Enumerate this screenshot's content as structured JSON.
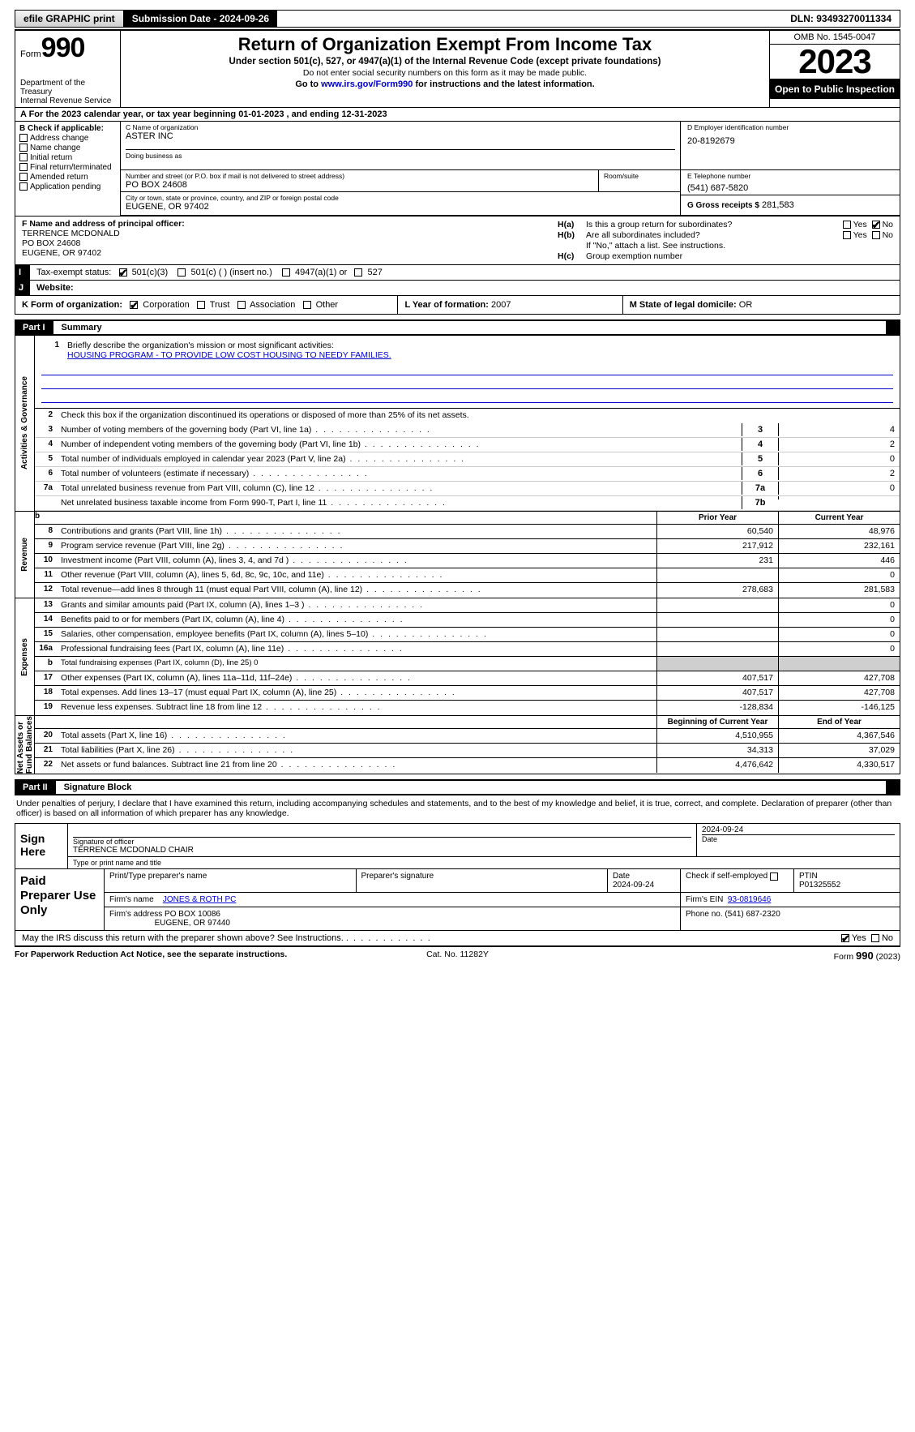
{
  "topbar": {
    "efile": "efile GRAPHIC print",
    "submission": "Submission Date - 2024-09-26",
    "dln": "DLN: 93493270011334"
  },
  "header": {
    "form_word": "Form",
    "form_num": "990",
    "dept": "Department of the Treasury\nInternal Revenue Service",
    "title": "Return of Organization Exempt From Income Tax",
    "sub1": "Under section 501(c), 527, or 4947(a)(1) of the Internal Revenue Code (except private foundations)",
    "sub2": "Do not enter social security numbers on this form as it may be made public.",
    "sub3_pre": "Go to ",
    "sub3_link": "www.irs.gov/Form990",
    "sub3_post": " for instructions and the latest information.",
    "omb": "OMB No. 1545-0047",
    "year": "2023",
    "open": "Open to Public Inspection"
  },
  "a_line": "A For the 2023 calendar year, or tax year beginning 01-01-2023    , and ending 12-31-2023",
  "b": {
    "hd": "B Check if applicable:",
    "items": [
      "Address change",
      "Name change",
      "Initial return",
      "Final return/terminated",
      "Amended return",
      "Application pending"
    ]
  },
  "c": {
    "name_lbl": "C Name of organization",
    "name": "ASTER INC",
    "dba_lbl": "Doing business as",
    "addr_lbl": "Number and street (or P.O. box if mail is not delivered to street address)",
    "room_lbl": "Room/suite",
    "addr": "PO BOX 24608",
    "city_lbl": "City or town, state or province, country, and ZIP or foreign postal code",
    "city": "EUGENE, OR  97402"
  },
  "d": {
    "lbl": "D Employer identification number",
    "val": "20-8192679"
  },
  "e": {
    "lbl": "E Telephone number",
    "val": "(541) 687-5820"
  },
  "g": {
    "lbl": "G Gross receipts $",
    "val": "281,583"
  },
  "f": {
    "lbl": "F  Name and address of principal officer:",
    "name": "TERRENCE MCDONALD",
    "addr1": "PO BOX 24608",
    "addr2": "EUGENE, OR  97402"
  },
  "h": {
    "a_q": "Is this a group return for subordinates?",
    "b_q": "Are all subordinates included?",
    "no_note": "If \"No,\" attach a list. See instructions.",
    "c_q": "Group exemption number",
    "yes": "Yes",
    "no": "No"
  },
  "i": {
    "lbl": "Tax-exempt status:",
    "opts": [
      "501(c)(3)",
      "501(c) (  ) (insert no.)",
      "4947(a)(1) or",
      "527"
    ]
  },
  "j": {
    "lbl": "Website: "
  },
  "k": {
    "lbl": "K Form of organization:",
    "opts": [
      "Corporation",
      "Trust",
      "Association",
      "Other"
    ]
  },
  "l": {
    "lbl": "L Year of formation:",
    "val": "2007"
  },
  "m": {
    "lbl": "M State of legal domicile:",
    "val": "OR"
  },
  "parts": {
    "p1": "Part I",
    "p1t": "Summary",
    "p2": "Part II",
    "p2t": "Signature Block"
  },
  "vtabs": {
    "ag": "Activities & Governance",
    "rev": "Revenue",
    "exp": "Expenses",
    "net": "Net Assets or\nFund Balances"
  },
  "brief_lbl": "Briefly describe the organization's mission or most significant activities:",
  "brief_val": "HOUSING PROGRAM - TO PROVIDE LOW COST HOUSING TO NEEDY FAMILIES.",
  "line2": "Check this box      if the organization discontinued its operations or disposed of more than 25% of its net assets.",
  "gov_rows": [
    {
      "n": "3",
      "t": "Number of voting members of the governing body (Part VI, line 1a)",
      "rn": "3",
      "v": "4"
    },
    {
      "n": "4",
      "t": "Number of independent voting members of the governing body (Part VI, line 1b)",
      "rn": "4",
      "v": "2"
    },
    {
      "n": "5",
      "t": "Total number of individuals employed in calendar year 2023 (Part V, line 2a)",
      "rn": "5",
      "v": "0"
    },
    {
      "n": "6",
      "t": "Total number of volunteers (estimate if necessary)",
      "rn": "6",
      "v": "2"
    },
    {
      "n": "7a",
      "t": "Total unrelated business revenue from Part VIII, column (C), line 12",
      "rn": "7a",
      "v": "0"
    },
    {
      "n": "",
      "t": "Net unrelated business taxable income from Form 990-T, Part I, line 11",
      "rn": "7b",
      "v": ""
    }
  ],
  "col_hdrs": {
    "prior": "Prior Year",
    "current": "Current Year",
    "beg": "Beginning of Current Year",
    "end": "End of Year"
  },
  "rev_rows": [
    {
      "n": "8",
      "t": "Contributions and grants (Part VIII, line 1h)",
      "p": "60,540",
      "c": "48,976"
    },
    {
      "n": "9",
      "t": "Program service revenue (Part VIII, line 2g)",
      "p": "217,912",
      "c": "232,161"
    },
    {
      "n": "10",
      "t": "Investment income (Part VIII, column (A), lines 3, 4, and 7d )",
      "p": "231",
      "c": "446"
    },
    {
      "n": "11",
      "t": "Other revenue (Part VIII, column (A), lines 5, 6d, 8c, 9c, 10c, and 11e)",
      "p": "",
      "c": "0"
    },
    {
      "n": "12",
      "t": "Total revenue—add lines 8 through 11 (must equal Part VIII, column (A), line 12)",
      "p": "278,683",
      "c": "281,583"
    }
  ],
  "exp_rows": [
    {
      "n": "13",
      "t": "Grants and similar amounts paid (Part IX, column (A), lines 1–3 )",
      "p": "",
      "c": "0"
    },
    {
      "n": "14",
      "t": "Benefits paid to or for members (Part IX, column (A), line 4)",
      "p": "",
      "c": "0"
    },
    {
      "n": "15",
      "t": "Salaries, other compensation, employee benefits (Part IX, column (A), lines 5–10)",
      "p": "",
      "c": "0"
    },
    {
      "n": "16a",
      "t": "Professional fundraising fees (Part IX, column (A), line 11e)",
      "p": "",
      "c": "0"
    },
    {
      "n": "b",
      "t": "Total fundraising expenses (Part IX, column (D), line 25) 0",
      "shade": true
    },
    {
      "n": "17",
      "t": "Other expenses (Part IX, column (A), lines 11a–11d, 11f–24e)",
      "p": "407,517",
      "c": "427,708"
    },
    {
      "n": "18",
      "t": "Total expenses. Add lines 13–17 (must equal Part IX, column (A), line 25)",
      "p": "407,517",
      "c": "427,708"
    },
    {
      "n": "19",
      "t": "Revenue less expenses. Subtract line 18 from line 12",
      "p": "-128,834",
      "c": "-146,125"
    }
  ],
  "net_rows": [
    {
      "n": "20",
      "t": "Total assets (Part X, line 16)",
      "p": "4,510,955",
      "c": "4,367,546"
    },
    {
      "n": "21",
      "t": "Total liabilities (Part X, line 26)",
      "p": "34,313",
      "c": "37,029"
    },
    {
      "n": "22",
      "t": "Net assets or fund balances. Subtract line 21 from line 20",
      "p": "4,476,642",
      "c": "4,330,517"
    }
  ],
  "sig_para": "Under penalties of perjury, I declare that I have examined this return, including accompanying schedules and statements, and to the best of my knowledge and belief, it is true, correct, and complete. Declaration of preparer (other than officer) is based on all information of which preparer has any knowledge.",
  "sign": {
    "here": "Sign Here",
    "sig_lbl": "Signature of officer",
    "name": "TERRENCE MCDONALD  CHAIR",
    "type_lbl": "Type or print name and title",
    "date_lbl": "Date",
    "date": "2024-09-24"
  },
  "prep": {
    "left": "Paid Preparer Use Only",
    "pt_lbl": "Print/Type preparer's name",
    "ps_lbl": "Preparer's signature",
    "date_lbl": "Date",
    "date": "2024-09-24",
    "chk_lbl": "Check         if self-employed",
    "ptin_lbl": "PTIN",
    "ptin": "P01325552",
    "firm_lbl": "Firm's name",
    "firm": "JONES & ROTH PC",
    "ein_lbl": "Firm's EIN",
    "ein": "93-0819646",
    "addr_lbl": "Firm's address",
    "addr1": "PO BOX 10086",
    "addr2": "EUGENE, OR  97440",
    "phone_lbl": "Phone no.",
    "phone": "(541) 687-2320"
  },
  "disc": "May the IRS discuss this return with the preparer shown above? See Instructions.",
  "footer": {
    "l": "For Paperwork Reduction Act Notice, see the separate instructions.",
    "c": "Cat. No. 11282Y",
    "r_pre": "Form ",
    "r_b": "990",
    "r_post": " (2023)"
  }
}
